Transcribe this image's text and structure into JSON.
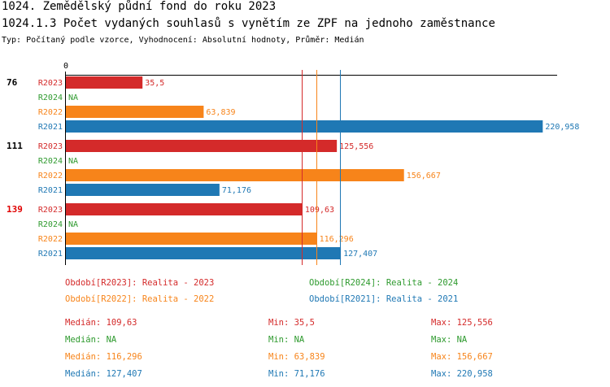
{
  "header": {
    "title": "1024. Zemědělský půdní fond  do roku 2023",
    "subtitle": "1024.1.3 Počet vydaných souhlasů s vynětím ze ZPF na jednoho zaměstnance",
    "type_line": "Typ: Počítaný podle vzorce, Vyhodnocení: Absolutní hodnoty, Průměr: Medián"
  },
  "colors": {
    "R2023": "#d42a2a",
    "R2024": "#2e9a2e",
    "R2022": "#f7841a",
    "R2021": "#1f78b4",
    "highlight_group": "#e00000"
  },
  "chart_data": {
    "type": "bar",
    "orientation": "horizontal",
    "x_origin_label": "0",
    "xlim": [
      0,
      228
    ],
    "categories": [
      "76",
      "111",
      "139"
    ],
    "highlight_category": "139",
    "series": [
      {
        "name": "R2023",
        "values": [
          35.5,
          125.556,
          109.63
        ],
        "labels": [
          "35,5",
          "125,556",
          "109,63"
        ]
      },
      {
        "name": "R2024",
        "values": [
          null,
          null,
          null
        ],
        "labels": [
          "NA",
          "NA",
          "NA"
        ]
      },
      {
        "name": "R2022",
        "values": [
          63.839,
          156.667,
          116.296
        ],
        "labels": [
          "63,839",
          "156,667",
          "116,296"
        ]
      },
      {
        "name": "R2021",
        "values": [
          220.958,
          71.176,
          127.407
        ],
        "labels": [
          "220,958",
          "71,176",
          "127,407"
        ]
      }
    ],
    "median_lines": [
      {
        "series": "R2023",
        "value": 109.63
      },
      {
        "series": "R2022",
        "value": 116.296
      },
      {
        "series": "R2021",
        "value": 127.407
      }
    ]
  },
  "legend": [
    {
      "text": "Období[R2023]: Realita - 2023",
      "series": "R2023"
    },
    {
      "text": "Období[R2024]: Realita - 2024",
      "series": "R2024"
    },
    {
      "text": "Období[R2022]: Realita - 2022",
      "series": "R2022"
    },
    {
      "text": "Období[R2021]: Realita - 2021",
      "series": "R2021"
    }
  ],
  "stats": [
    {
      "series": "R2023",
      "median": "Medián: 109,63",
      "min": "Min: 35,5",
      "max": "Max: 125,556"
    },
    {
      "series": "R2024",
      "median": "Medián: NA",
      "min": "Min: NA",
      "max": "Max: NA"
    },
    {
      "series": "R2022",
      "median": "Medián: 116,296",
      "min": "Min: 63,839",
      "max": "Max: 156,667"
    },
    {
      "series": "R2021",
      "median": "Medián: 127,407",
      "min": "Min: 71,176",
      "max": "Max: 220,958"
    }
  ]
}
